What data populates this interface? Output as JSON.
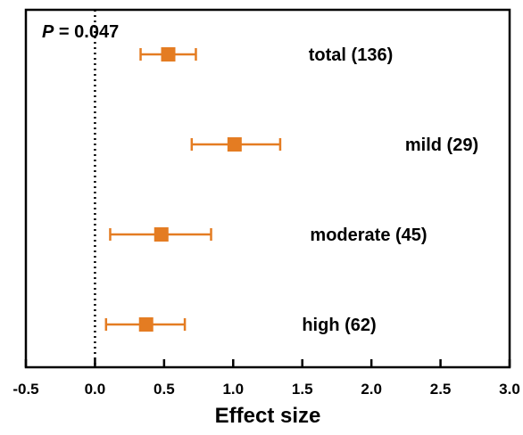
{
  "chart_data": {
    "type": "forest",
    "xlabel": "Effect size",
    "xlim": [
      -0.5,
      3.0
    ],
    "x_ticks": [
      "-0.5",
      "0.0",
      "0.5",
      "1.0",
      "1.5",
      "2.0",
      "2.5",
      "3.0"
    ],
    "reference_line_x": 0.0,
    "annotation": {
      "p_label": "P",
      "p_value_text": " = 0.047"
    },
    "categories": [
      "total (136)",
      "mild (29)",
      "moderate (45)",
      "high (62)"
    ],
    "estimates": [
      0.53,
      1.01,
      0.48,
      0.37
    ],
    "ci_lower": [
      0.33,
      0.7,
      0.11,
      0.08
    ],
    "ci_upper": [
      0.73,
      1.34,
      0.84,
      0.65
    ],
    "grid": false,
    "legend": "none",
    "colors": {
      "marker": "#E47C22",
      "errorbar": "#E47C22",
      "axis": "#000000",
      "text": "#000000"
    }
  }
}
